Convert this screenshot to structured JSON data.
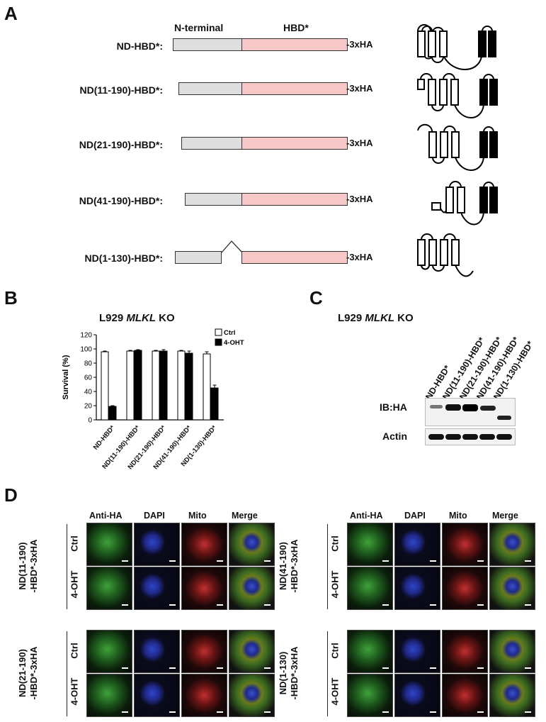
{
  "panelA": {
    "letter": "A",
    "header_nterm": "N-terminal",
    "header_hbd": "HBD*",
    "tag": "-3xHA",
    "constructs": [
      {
        "label": "ND-HBD*:"
      },
      {
        "label": "ND(11-190)-HBD*:"
      },
      {
        "label": "ND(21-190)-HBD*:"
      },
      {
        "label": "ND(41-190)-HBD*:"
      },
      {
        "label": "ND(1-130)-HBD*:"
      }
    ]
  },
  "panelB": {
    "letter": "B",
    "title_prefix": "L929 ",
    "title_gene": "MLKL",
    "title_suffix": " KO",
    "chart_data": {
      "type": "bar",
      "title": "L929 MLKL KO",
      "ylabel": "Survival (%)",
      "ylim": [
        0,
        120
      ],
      "yticks": [
        0,
        20,
        40,
        60,
        80,
        100,
        120
      ],
      "categories": [
        "ND-HBD*",
        "ND(11-190)-HBD*",
        "ND(21-190)-HBD*",
        "ND(41-190)-HBD*",
        "ND(1-130)-HBD*"
      ],
      "series": [
        {
          "name": "Ctrl",
          "color": "#ffffff",
          "values": [
            96,
            97,
            97,
            97,
            93
          ],
          "errors": [
            1,
            1,
            1,
            1,
            3
          ]
        },
        {
          "name": "4-OHT",
          "color": "#000000",
          "values": [
            19,
            98,
            97,
            94,
            45
          ],
          "errors": [
            1,
            1,
            2,
            3,
            4
          ]
        }
      ],
      "legend": "top-right"
    }
  },
  "panelC": {
    "letter": "C",
    "title_prefix": "L929 ",
    "title_gene": "MLKL",
    "title_suffix": " KO",
    "lanes": [
      "ND-HBD*",
      "ND(11-190)-HBD*",
      "ND(21-190)-HBD*",
      "ND(41-190)-HBD*",
      "ND(1-130)-HBD*"
    ],
    "rows": [
      {
        "label": "IB:HA"
      },
      {
        "label": "Actin"
      }
    ]
  },
  "panelD": {
    "letter": "D",
    "columns": [
      "Anti-HA",
      "DAPI",
      "Mito",
      "Merge"
    ],
    "conditions": [
      "Ctrl",
      "4-OHT"
    ],
    "groups": [
      {
        "line1": "ND(11-190)",
        "line2": "-HBD*-3xHA"
      },
      {
        "line1": "ND(41-190)",
        "line2": "-HBD*-3xHA"
      },
      {
        "line1": "ND(21-190)",
        "line2": "-HBD*-3xHA"
      },
      {
        "line1": "ND(1-130)",
        "line2": "-HBD*-3xHA"
      }
    ]
  }
}
